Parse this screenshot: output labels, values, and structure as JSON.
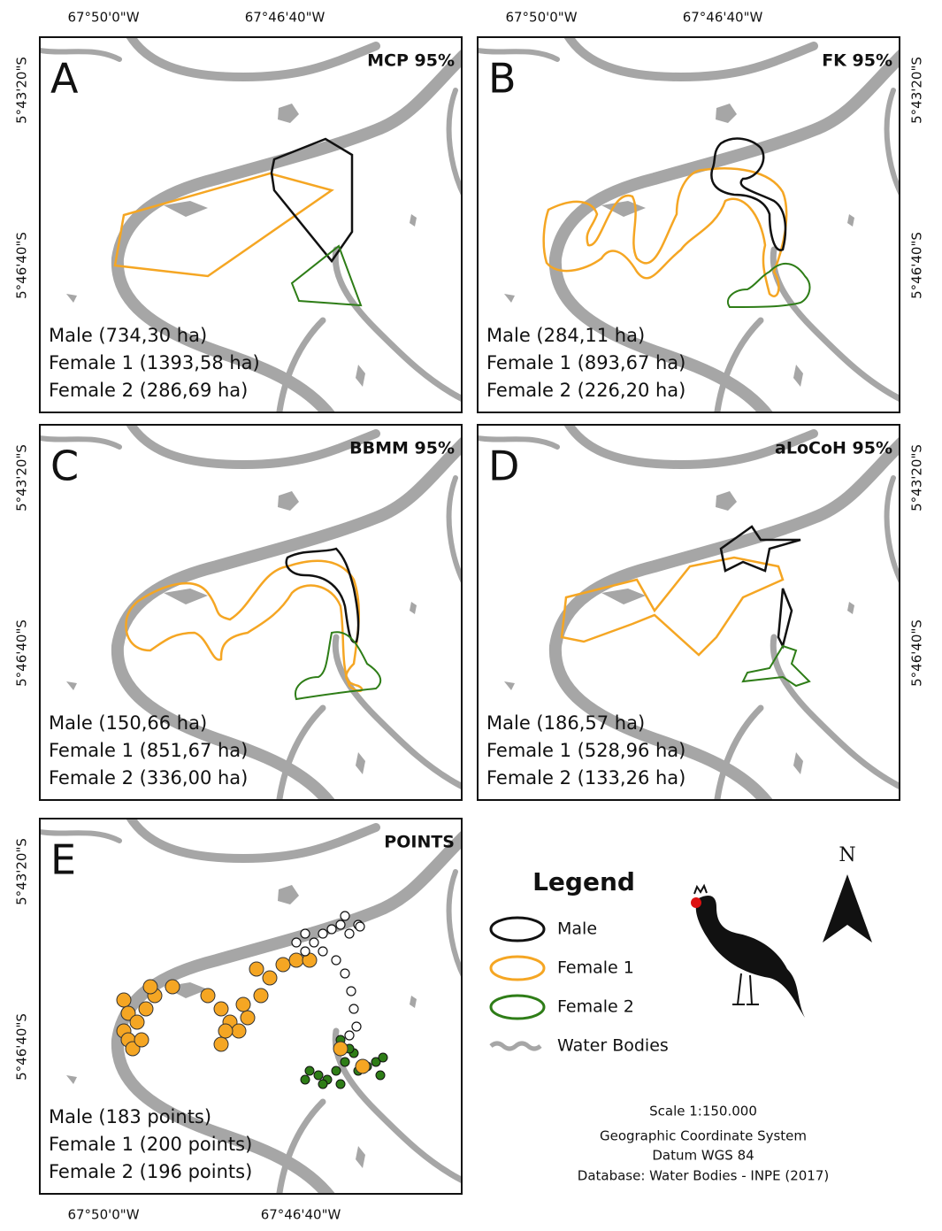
{
  "panels": [
    {
      "letter": "A",
      "method": "MCP 95%",
      "areas": [
        "Male (734,30 ha)",
        "Female 1 (1393,58 ha)",
        "Female 2 (286,69 ha)"
      ]
    },
    {
      "letter": "B",
      "method": "FK 95%",
      "areas": [
        "Male (284,11 ha)",
        "Female 1 (893,67 ha)",
        "Female 2 (226,20 ha)"
      ]
    },
    {
      "letter": "C",
      "method": "BBMM 95%",
      "areas": [
        "Male (150,66 ha)",
        "Female 1 (851,67 ha)",
        "Female 2 (336,00 ha)"
      ]
    },
    {
      "letter": "D",
      "method": "aLoCoH 95%",
      "areas": [
        "Male (186,57 ha)",
        "Female 1 (528,96 ha)",
        "Female 2 (133,26 ha)"
      ]
    },
    {
      "letter": "E",
      "method": "POINTS",
      "areas": [
        "Male (183 points)",
        "Female 1 (200 points)",
        "Female 2 (196 points)"
      ]
    }
  ],
  "coordinates": {
    "lon": [
      "67°50'0\"W",
      "67°46'40\"W"
    ],
    "lat": [
      "5°43'20\"S",
      "5°46'40\"S"
    ]
  },
  "legend": {
    "title": "Legend",
    "items": [
      "Male",
      "Female 1",
      "Female 2",
      "Water Bodies"
    ]
  },
  "north": "N",
  "notes": [
    "Scale 1:150.000",
    "Geographic Coordinate System",
    "Datum WGS 84",
    "Database: Water Bodies - INPE (2017)"
  ]
}
